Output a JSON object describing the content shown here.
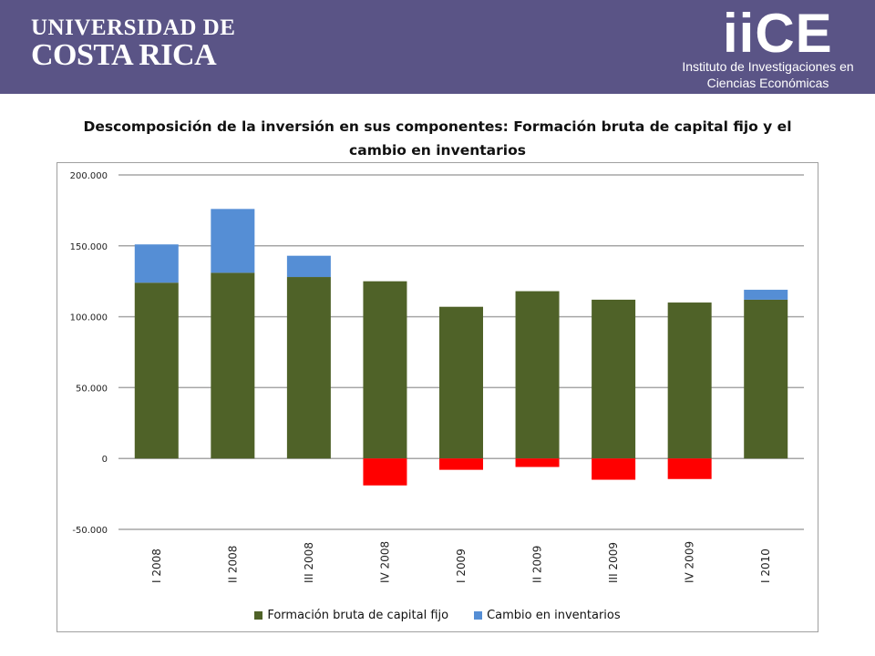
{
  "header": {
    "university_line1": "UNIVERSIDAD DE",
    "university_line2": "COSTA RICA",
    "institute_logo": "iiCE",
    "institute_name": "Instituto de Investigaciones en Ciencias Económicas"
  },
  "colors": {
    "header_bg": "#5a5486",
    "fbkf": "#4f6228",
    "inventory_positive": "#558ed5",
    "inventory_negative": "#ff0000",
    "gridline": "#a6a6a6"
  },
  "chart_data": {
    "type": "bar",
    "stacked": true,
    "title": "Descomposición de la inversión en sus componentes: Formación bruta de capital fijo y el cambio en inventarios",
    "xlabel": "",
    "ylabel": "",
    "categories": [
      "I 2008",
      "II 2008",
      "III 2008",
      "IV 2008",
      "I 2009",
      "II 2009",
      "III 2009",
      "IV 2009",
      "I 2010"
    ],
    "series": [
      {
        "name": "Formación bruta de capital fijo",
        "color": "#4f6228",
        "values": [
          124000,
          131000,
          128000,
          125000,
          107000,
          118000,
          112000,
          110000,
          112000
        ]
      },
      {
        "name": "Cambio en inventarios",
        "color": "#558ed5",
        "negative_color": "#ff0000",
        "values": [
          27000,
          45000,
          15000,
          -19000,
          -8000,
          -6000,
          -15000,
          -14500,
          7000
        ]
      }
    ],
    "ylim": [
      -50000,
      200000
    ],
    "yticks": [
      -50000,
      0,
      50000,
      100000,
      150000,
      200000
    ],
    "ytick_labels": [
      "-50.000",
      "0",
      "50.000",
      "100.000",
      "150.000",
      "200.000"
    ],
    "grid": true,
    "legend_position": "bottom"
  }
}
